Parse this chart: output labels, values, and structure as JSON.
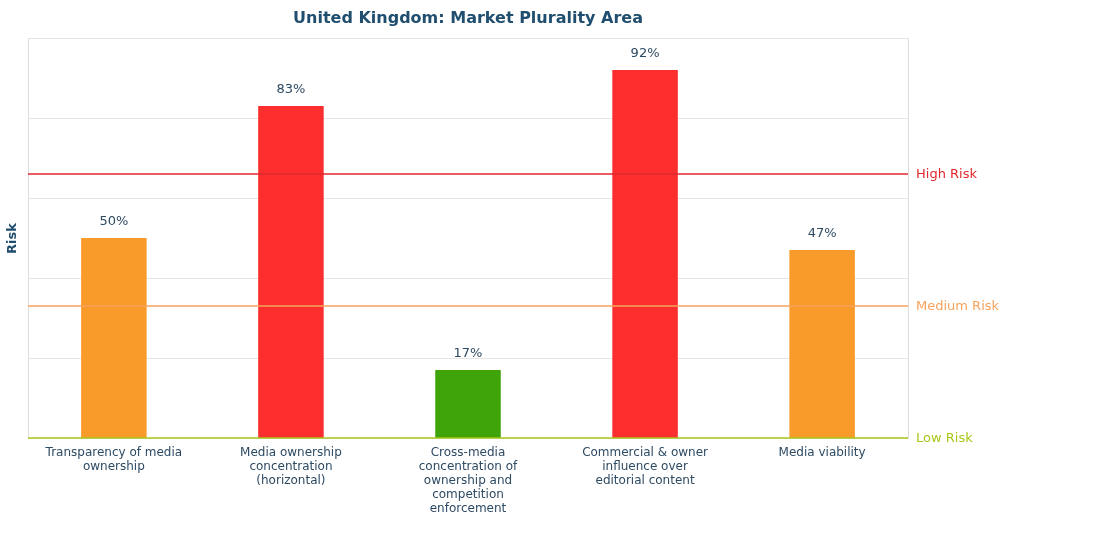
{
  "chart_data": {
    "type": "bar",
    "title": "United Kingdom: Market Plurality Area",
    "ylabel": "Risk",
    "categories": [
      "Transparency of media ownership",
      "Media ownership concentration (horizontal)",
      "Cross-media concentration of ownership and competition enforcement",
      "Commercial & owner influence over editorial content",
      "Media viability"
    ],
    "values": [
      50,
      83,
      17,
      92,
      47
    ],
    "colors": [
      "#f99b2b",
      "#fc2e2e",
      "#3fa30a",
      "#fc2e2e",
      "#f99b2b"
    ],
    "value_labels": [
      "50%",
      "83%",
      "17%",
      "92%",
      "47%"
    ],
    "ylim": [
      0,
      100
    ],
    "yticks": [
      {
        "value": 0,
        "label": null
      },
      {
        "value": 20,
        "label": null
      },
      {
        "value": 40,
        "label": null
      },
      {
        "value": 60,
        "label": null
      },
      {
        "value": 80,
        "label": null
      },
      {
        "value": 100,
        "label": null
      }
    ],
    "tick_labels": "x",
    "grid": "y",
    "ref_lines": [
      {
        "axis": "y",
        "value": 0,
        "label": "Low Risk",
        "color": "#a8c81a"
      },
      {
        "axis": "y",
        "value": 33,
        "label": "Medium Risk",
        "color": "#f7a35c"
      },
      {
        "axis": "y",
        "value": 66,
        "label": "High Risk",
        "color": "#e0282e"
      }
    ]
  }
}
